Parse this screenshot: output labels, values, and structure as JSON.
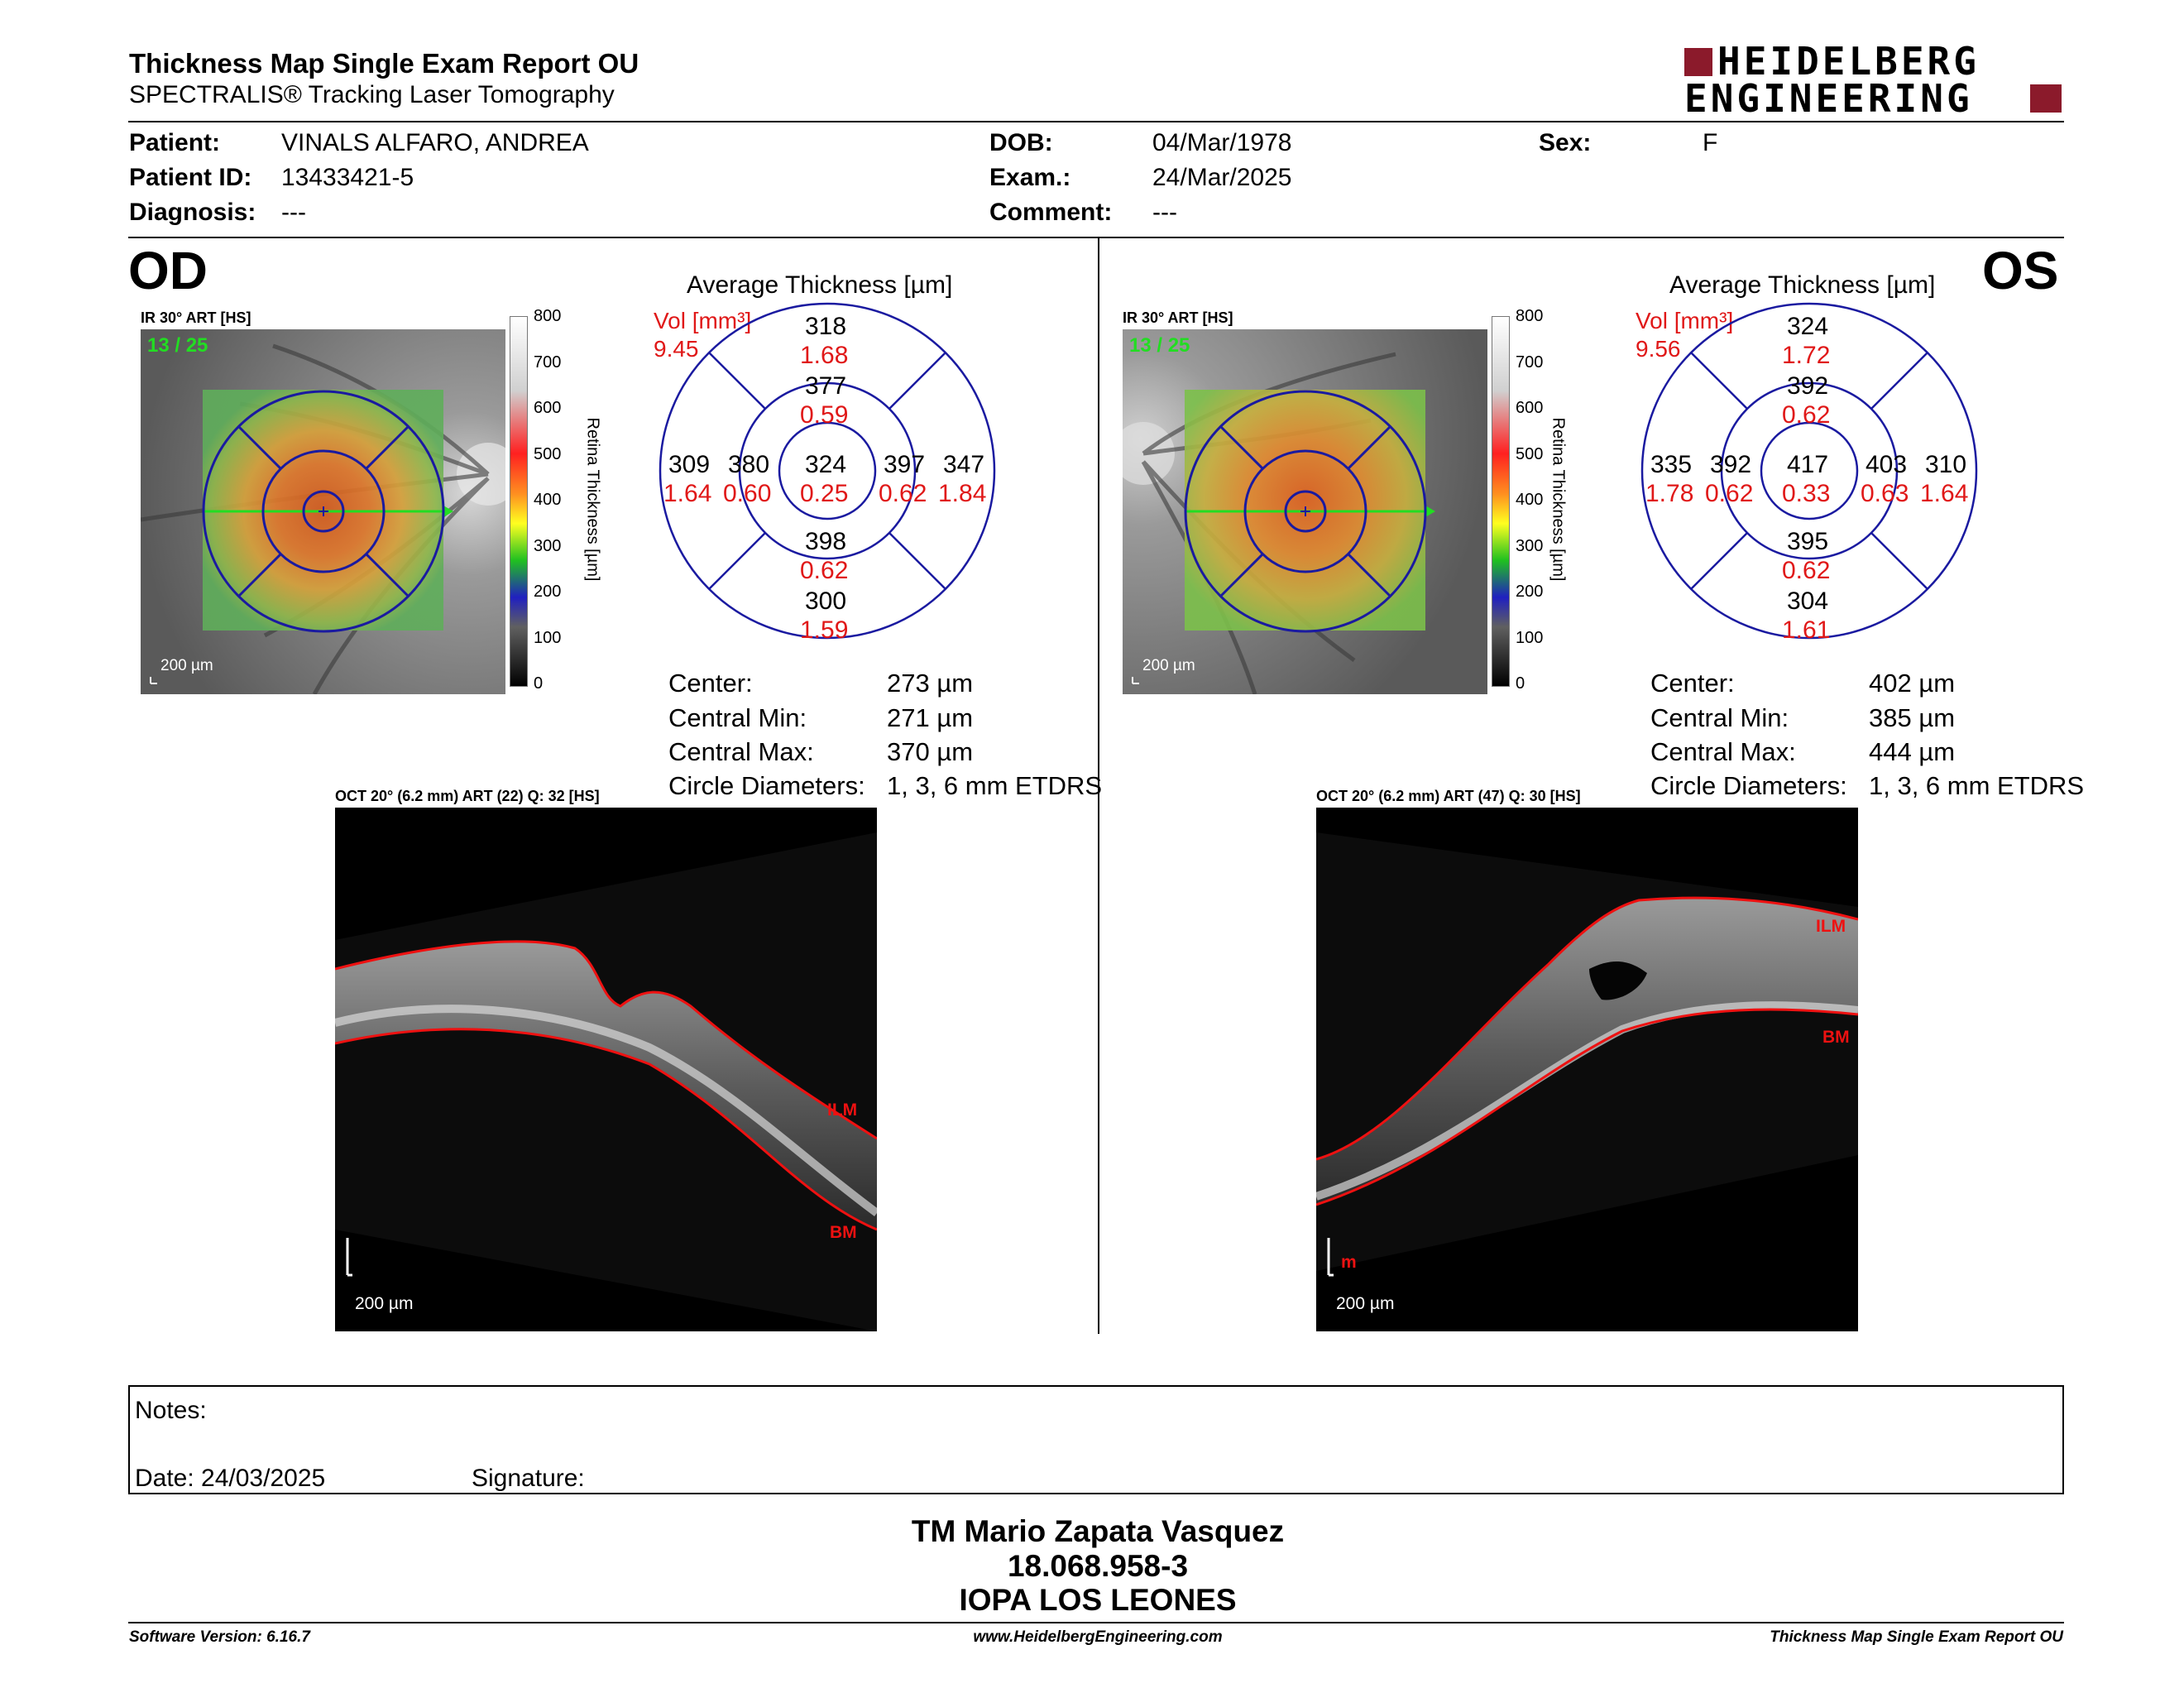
{
  "report": {
    "title": "Thickness Map Single Exam Report OU",
    "subtitle": "SPECTRALIS® Tracking Laser Tomography",
    "logo_line1": "HEIDELBERG",
    "logo_line2": "ENGINEERING",
    "logo_color": "#8b1a2b"
  },
  "patient": {
    "patient_label": "Patient:",
    "patient_value": "VINALS ALFARO, ANDREA",
    "id_label": "Patient ID:",
    "id_value": "13433421-5",
    "diagnosis_label": "Diagnosis:",
    "diagnosis_value": "---",
    "dob_label": "DOB:",
    "dob_value": "04/Mar/1978",
    "exam_label": "Exam.:",
    "exam_value": "24/Mar/2025",
    "comment_label": "Comment:",
    "comment_value": "---",
    "sex_label": "Sex:",
    "sex_value": "F"
  },
  "colorbar": {
    "ticks": [
      "800",
      "700",
      "600",
      "500",
      "400",
      "300",
      "200",
      "100",
      "0"
    ],
    "label": "Retina Thickness [µm]"
  },
  "od": {
    "eye": "OD",
    "ir_label": "IR 30° ART [HS]",
    "frame": "13 / 25",
    "ir_scale": "200 µm",
    "avg_title": "Average Thickness [µm]",
    "vol_label": "Vol [mm³]",
    "vol_value": "9.45",
    "sectors": {
      "outer_sup": {
        "t": "318",
        "v": "1.68"
      },
      "inner_sup": {
        "t": "377",
        "v": "0.59"
      },
      "outer_nas": {
        "t": "309",
        "v": "1.64"
      },
      "inner_nas": {
        "t": "380",
        "v": "0.60"
      },
      "center": {
        "t": "324",
        "v": "0.25"
      },
      "inner_tmp": {
        "t": "397",
        "v": "0.62"
      },
      "outer_tmp": {
        "t": "347",
        "v": "1.84"
      },
      "inner_inf": {
        "t": "398",
        "v": "0.62"
      },
      "outer_inf": {
        "t": "300",
        "v": "1.59"
      }
    },
    "stats": [
      {
        "label": "Center:",
        "value": "273 µm"
      },
      {
        "label": "Central Min:",
        "value": "271 µm"
      },
      {
        "label": "Central Max:",
        "value": "370 µm"
      },
      {
        "label": "Circle Diameters:",
        "value": "1, 3, 6 mm ETDRS"
      }
    ],
    "oct_label": "OCT 20° (6.2 mm) ART (22) Q: 32 [HS]",
    "oct_scale": "200 µm",
    "ilm": "ILM",
    "bm": "BM"
  },
  "os": {
    "eye": "OS",
    "ir_label": "IR 30° ART [HS]",
    "frame": "13 / 25",
    "ir_scale": "200 µm",
    "avg_title": "Average Thickness [µm]",
    "vol_label": "Vol [mm³]",
    "vol_value": "9.56",
    "sectors": {
      "outer_sup": {
        "t": "324",
        "v": "1.72"
      },
      "inner_sup": {
        "t": "392",
        "v": "0.62"
      },
      "outer_nas": {
        "t": "335",
        "v": "1.78"
      },
      "inner_nas": {
        "t": "392",
        "v": "0.62"
      },
      "center": {
        "t": "417",
        "v": "0.33"
      },
      "inner_tmp": {
        "t": "403",
        "v": "0.63"
      },
      "outer_tmp": {
        "t": "310",
        "v": "1.64"
      },
      "inner_inf": {
        "t": "395",
        "v": "0.62"
      },
      "outer_inf": {
        "t": "304",
        "v": "1.61"
      }
    },
    "stats": [
      {
        "label": "Center:",
        "value": "402 µm"
      },
      {
        "label": "Central Min:",
        "value": "385 µm"
      },
      {
        "label": "Central Max:",
        "value": "444 µm"
      },
      {
        "label": "Circle Diameters:",
        "value": "1, 3, 6 mm ETDRS"
      }
    ],
    "oct_label": "OCT 20° (6.2 mm) ART (47) Q: 30 [HS]",
    "oct_scale": "200 µm",
    "ilm": "ILM",
    "bm": "BM",
    "bm_partial": "m"
  },
  "notes": {
    "notes_label": "Notes:",
    "date_label": "Date: 24/03/2025",
    "signature_label": "Signature:"
  },
  "signer": {
    "name": "TM Mario Zapata Vasquez",
    "rut": "18.068.958-3",
    "org": "IOPA LOS LEONES"
  },
  "footer": {
    "software": "Software Version: 6.16.7",
    "url": "www.HeidelbergEngineering.com",
    "report": "Thickness Map Single Exam Report OU"
  }
}
